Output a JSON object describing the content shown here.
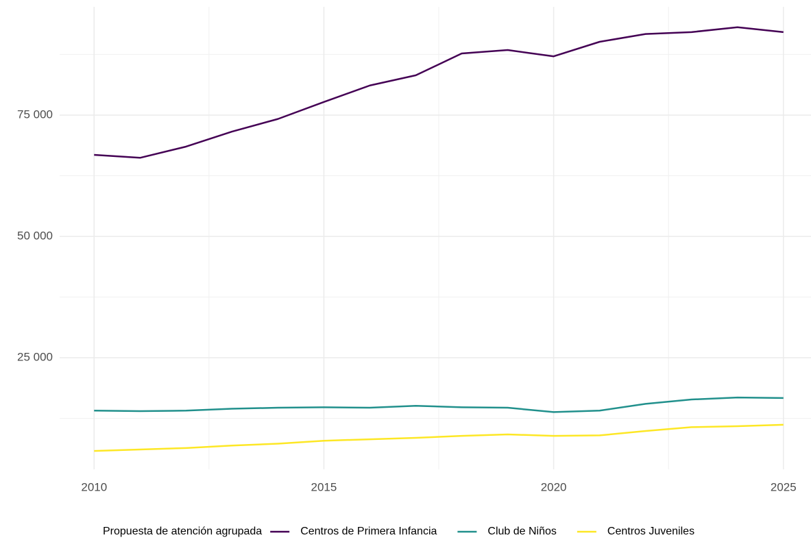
{
  "chart_data": {
    "type": "line",
    "x": [
      2010,
      2011,
      2012,
      2013,
      2014,
      2015,
      2016,
      2017,
      2018,
      2019,
      2020,
      2021,
      2022,
      2023,
      2024,
      2025
    ],
    "series": [
      {
        "name": "Centros de Primera Infancia",
        "color": "#440154",
        "values": [
          66800,
          66200,
          68500,
          71600,
          74200,
          77700,
          81100,
          83200,
          87700,
          88400,
          87100,
          90100,
          91700,
          92100,
          93100,
          92100
        ]
      },
      {
        "name": "Club de Niños",
        "color": "#21908c",
        "values": [
          14100,
          14000,
          14100,
          14500,
          14700,
          14800,
          14700,
          15100,
          14800,
          14700,
          13800,
          14100,
          15500,
          16400,
          16800,
          16700
        ]
      },
      {
        "name": "Centros Juveniles",
        "color": "#fde725",
        "values": [
          5800,
          6100,
          6400,
          6900,
          7300,
          7900,
          8200,
          8500,
          8900,
          9200,
          8900,
          9000,
          9900,
          10700,
          10900,
          11200
        ]
      }
    ],
    "legend_title": "Propuesta de atención agrupada",
    "legend_position": "bottom",
    "xlim": [
      2009.25,
      2025.6
    ],
    "xticks": [
      2010,
      2015,
      2020,
      2025
    ],
    "minor_xticks": [
      2012.5,
      2017.5,
      2022.5
    ],
    "ylim": [
      2000,
      97300
    ],
    "yticks": [
      {
        "value": 25000,
        "label": "25 000"
      },
      {
        "value": 50000,
        "label": "50 000"
      },
      {
        "value": 75000,
        "label": "75 000"
      }
    ],
    "minor_yticks": [
      12500,
      37500,
      62500,
      87500
    ],
    "grid": true
  }
}
